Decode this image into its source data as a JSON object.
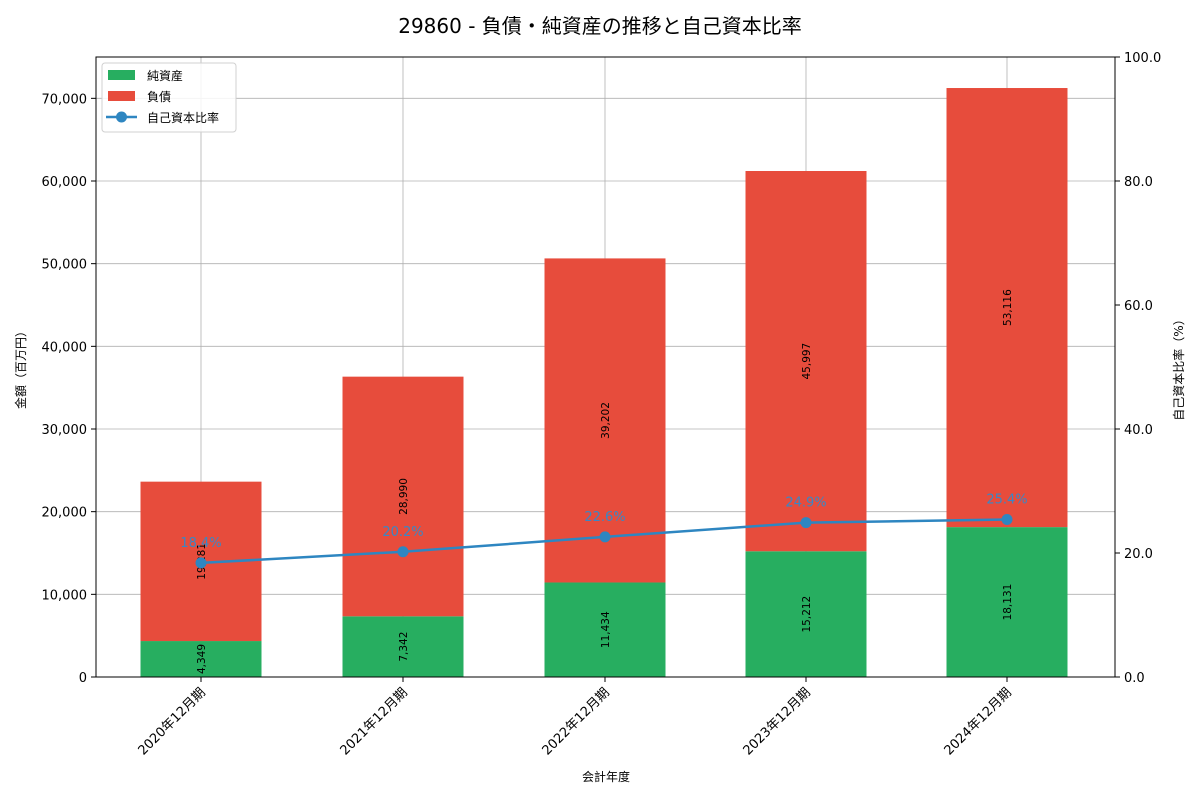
{
  "title": "29860 - 負債・純資産の推移と自己資本比率",
  "xlabel": "会計年度",
  "ylabel_left": "金額（百万円）",
  "ylabel_right": "自己資本比率（%）",
  "legend": [
    "純資産",
    "負債",
    "自己資本比率"
  ],
  "colors": {
    "net_assets": "#27ae60",
    "liabilities": "#e74c3c",
    "ratio": "#2e86c1",
    "grid": "#b0b0b0"
  },
  "left_ticks": [
    "0",
    "10,000",
    "20,000",
    "30,000",
    "40,000",
    "50,000",
    "60,000",
    "70,000"
  ],
  "right_ticks": [
    "0.0",
    "20.0",
    "40.0",
    "60.0",
    "80.0",
    "100.0"
  ],
  "chart_data": {
    "type": "bar",
    "title": "29860 - 負債・純資産の推移と自己資本比率",
    "xlabel": "会計年度",
    "ylabel": "金額（百万円）",
    "ylabel_right": "自己資本比率（%）",
    "categories": [
      "2020年12月期",
      "2021年12月期",
      "2022年12月期",
      "2023年12月期",
      "2024年12月期"
    ],
    "series": [
      {
        "name": "純資産",
        "type": "bar",
        "stacked": true,
        "axis": "left",
        "values": [
          4349,
          7342,
          11434,
          15212,
          18131
        ],
        "labels": [
          "4,349",
          "7,342",
          "11,434",
          "15,212",
          "18,131"
        ]
      },
      {
        "name": "負債",
        "type": "bar",
        "stacked": true,
        "axis": "left",
        "values": [
          19281,
          28990,
          39202,
          45997,
          53116
        ],
        "labels": [
          "19,281",
          "28,990",
          "39,202",
          "45,997",
          "53,116"
        ]
      },
      {
        "name": "自己資本比率",
        "type": "line",
        "axis": "right",
        "values": [
          18.4,
          20.2,
          22.6,
          24.9,
          25.4
        ],
        "labels": [
          "18.4%",
          "20.2%",
          "22.6%",
          "24.9%",
          "25.4%"
        ]
      }
    ],
    "ylim": [
      0,
      75000
    ],
    "ylim_right": [
      0,
      100
    ],
    "grid": true,
    "legend_position": "upper left"
  }
}
